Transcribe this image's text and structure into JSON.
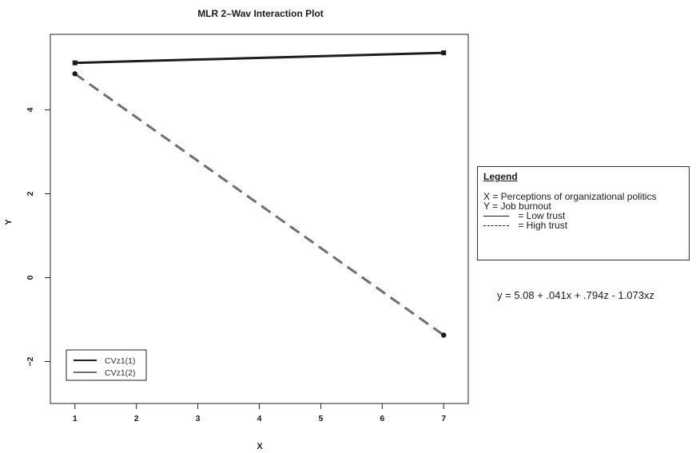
{
  "chart_data": {
    "type": "line",
    "title": "MLR 2–Wav Interaction Plot",
    "xlabel": "X",
    "ylabel": "Y",
    "xlim": [
      0.6,
      7.4
    ],
    "ylim": [
      -3.0,
      5.8
    ],
    "x_ticks": [
      1,
      2,
      3,
      4,
      5,
      6,
      7
    ],
    "y_ticks": [
      -2,
      0,
      2,
      4
    ],
    "x_tick_labels": [
      "1",
      "2",
      "3",
      "4",
      "5",
      "6",
      "7"
    ],
    "y_tick_labels": [
      "−2",
      "0",
      "2",
      "4"
    ],
    "grid": false,
    "legend_position": "bottom-left",
    "series": [
      {
        "name": "CVz1(1)",
        "x": [
          1,
          7
        ],
        "y": [
          5.12,
          5.36
        ],
        "style": "solid",
        "color": "#1e1e1e",
        "marker": "square"
      },
      {
        "name": "CVz1(2)",
        "x": [
          1,
          7
        ],
        "y": [
          4.86,
          -1.37
        ],
        "style": "dashed",
        "color": "#6e6e6e",
        "marker": "circle"
      }
    ]
  },
  "side_legend": {
    "title": "Legend",
    "lines": [
      "X = Perceptions of organizational politics",
      "Y = Job burnout"
    ],
    "low_label": " = Low trust",
    "high_label": " = High trust"
  },
  "equation": "y = 5.08 + .041x + .794z - 1.073xz"
}
